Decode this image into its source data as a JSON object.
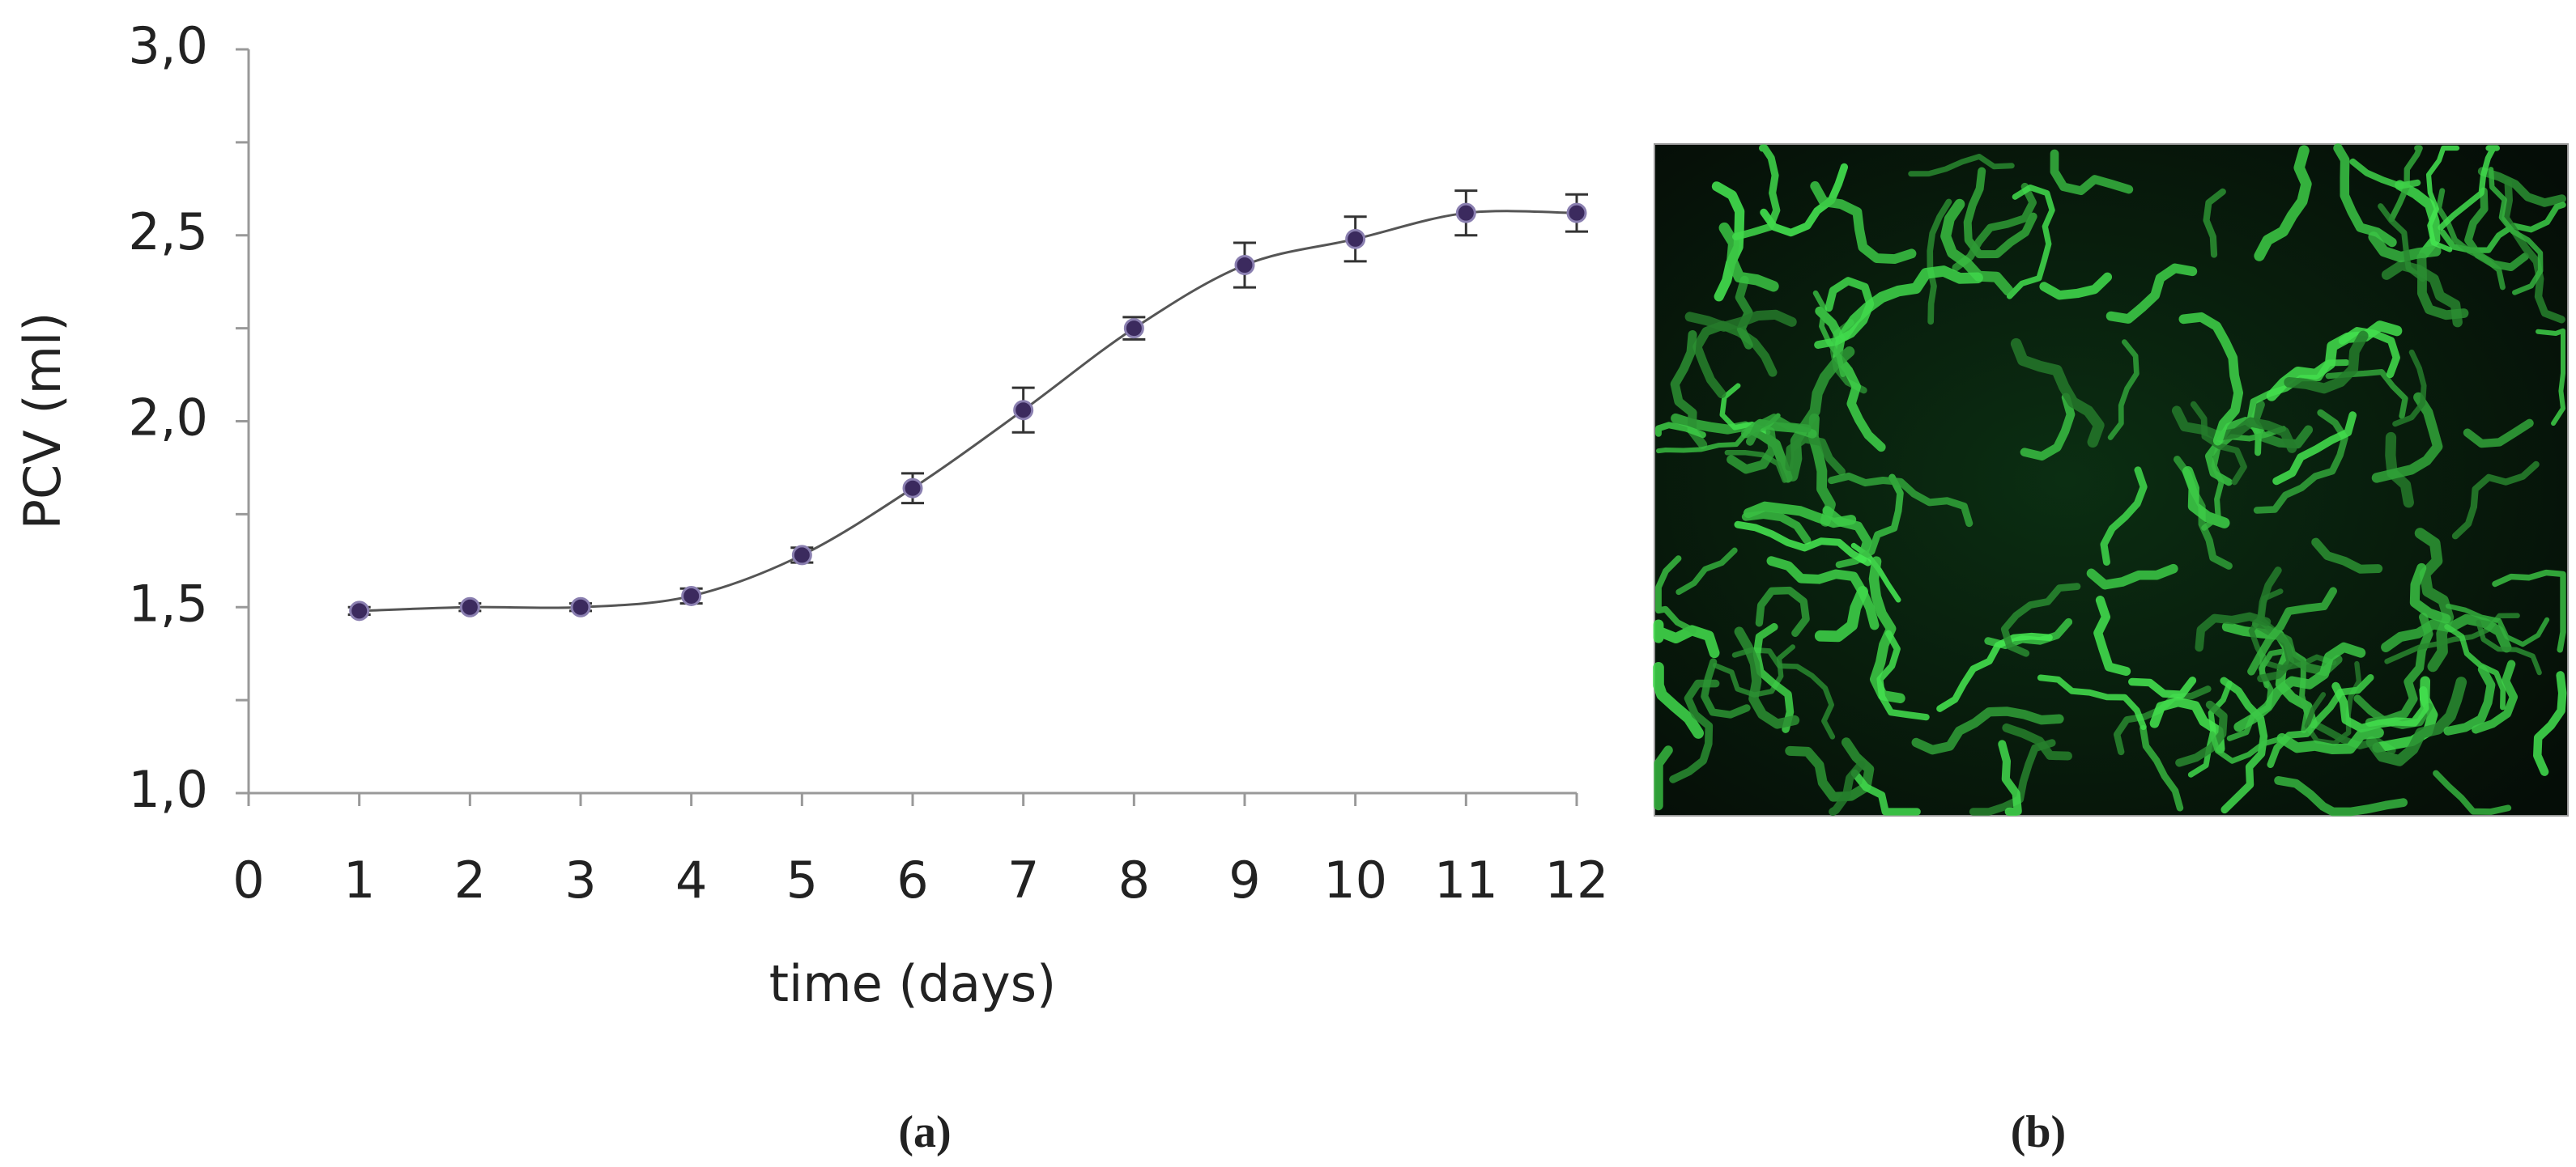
{
  "chart_data": {
    "type": "line",
    "x_label": "time (days)",
    "y_label": "PCV  (ml)",
    "x": [
      1,
      2,
      3,
      4,
      5,
      6,
      7,
      8,
      9,
      10,
      11,
      12
    ],
    "values": [
      1.49,
      1.5,
      1.5,
      1.53,
      1.64,
      1.82,
      2.03,
      2.25,
      2.42,
      2.49,
      2.56,
      2.56
    ],
    "errors": [
      0.01,
      0.01,
      0.01,
      0.02,
      0.02,
      0.04,
      0.06,
      0.03,
      0.06,
      0.06,
      0.06,
      0.05
    ],
    "color": "#3b2a5e",
    "xlim": [
      0,
      12
    ],
    "xticks": [
      0,
      1,
      2,
      3,
      4,
      5,
      6,
      7,
      8,
      9,
      10,
      11,
      12
    ],
    "ylim": [
      1,
      3
    ],
    "yticks": [
      {
        "value": 1,
        "label": "1,0"
      },
      {
        "value": 1.5,
        "label": "1,5"
      },
      {
        "value": 2,
        "label": "2,0"
      },
      {
        "value": 2.5,
        "label": "2,5"
      },
      {
        "value": 3,
        "label": "3,0"
      }
    ]
  },
  "panels": {
    "a": "(a)",
    "b": "(b)"
  }
}
